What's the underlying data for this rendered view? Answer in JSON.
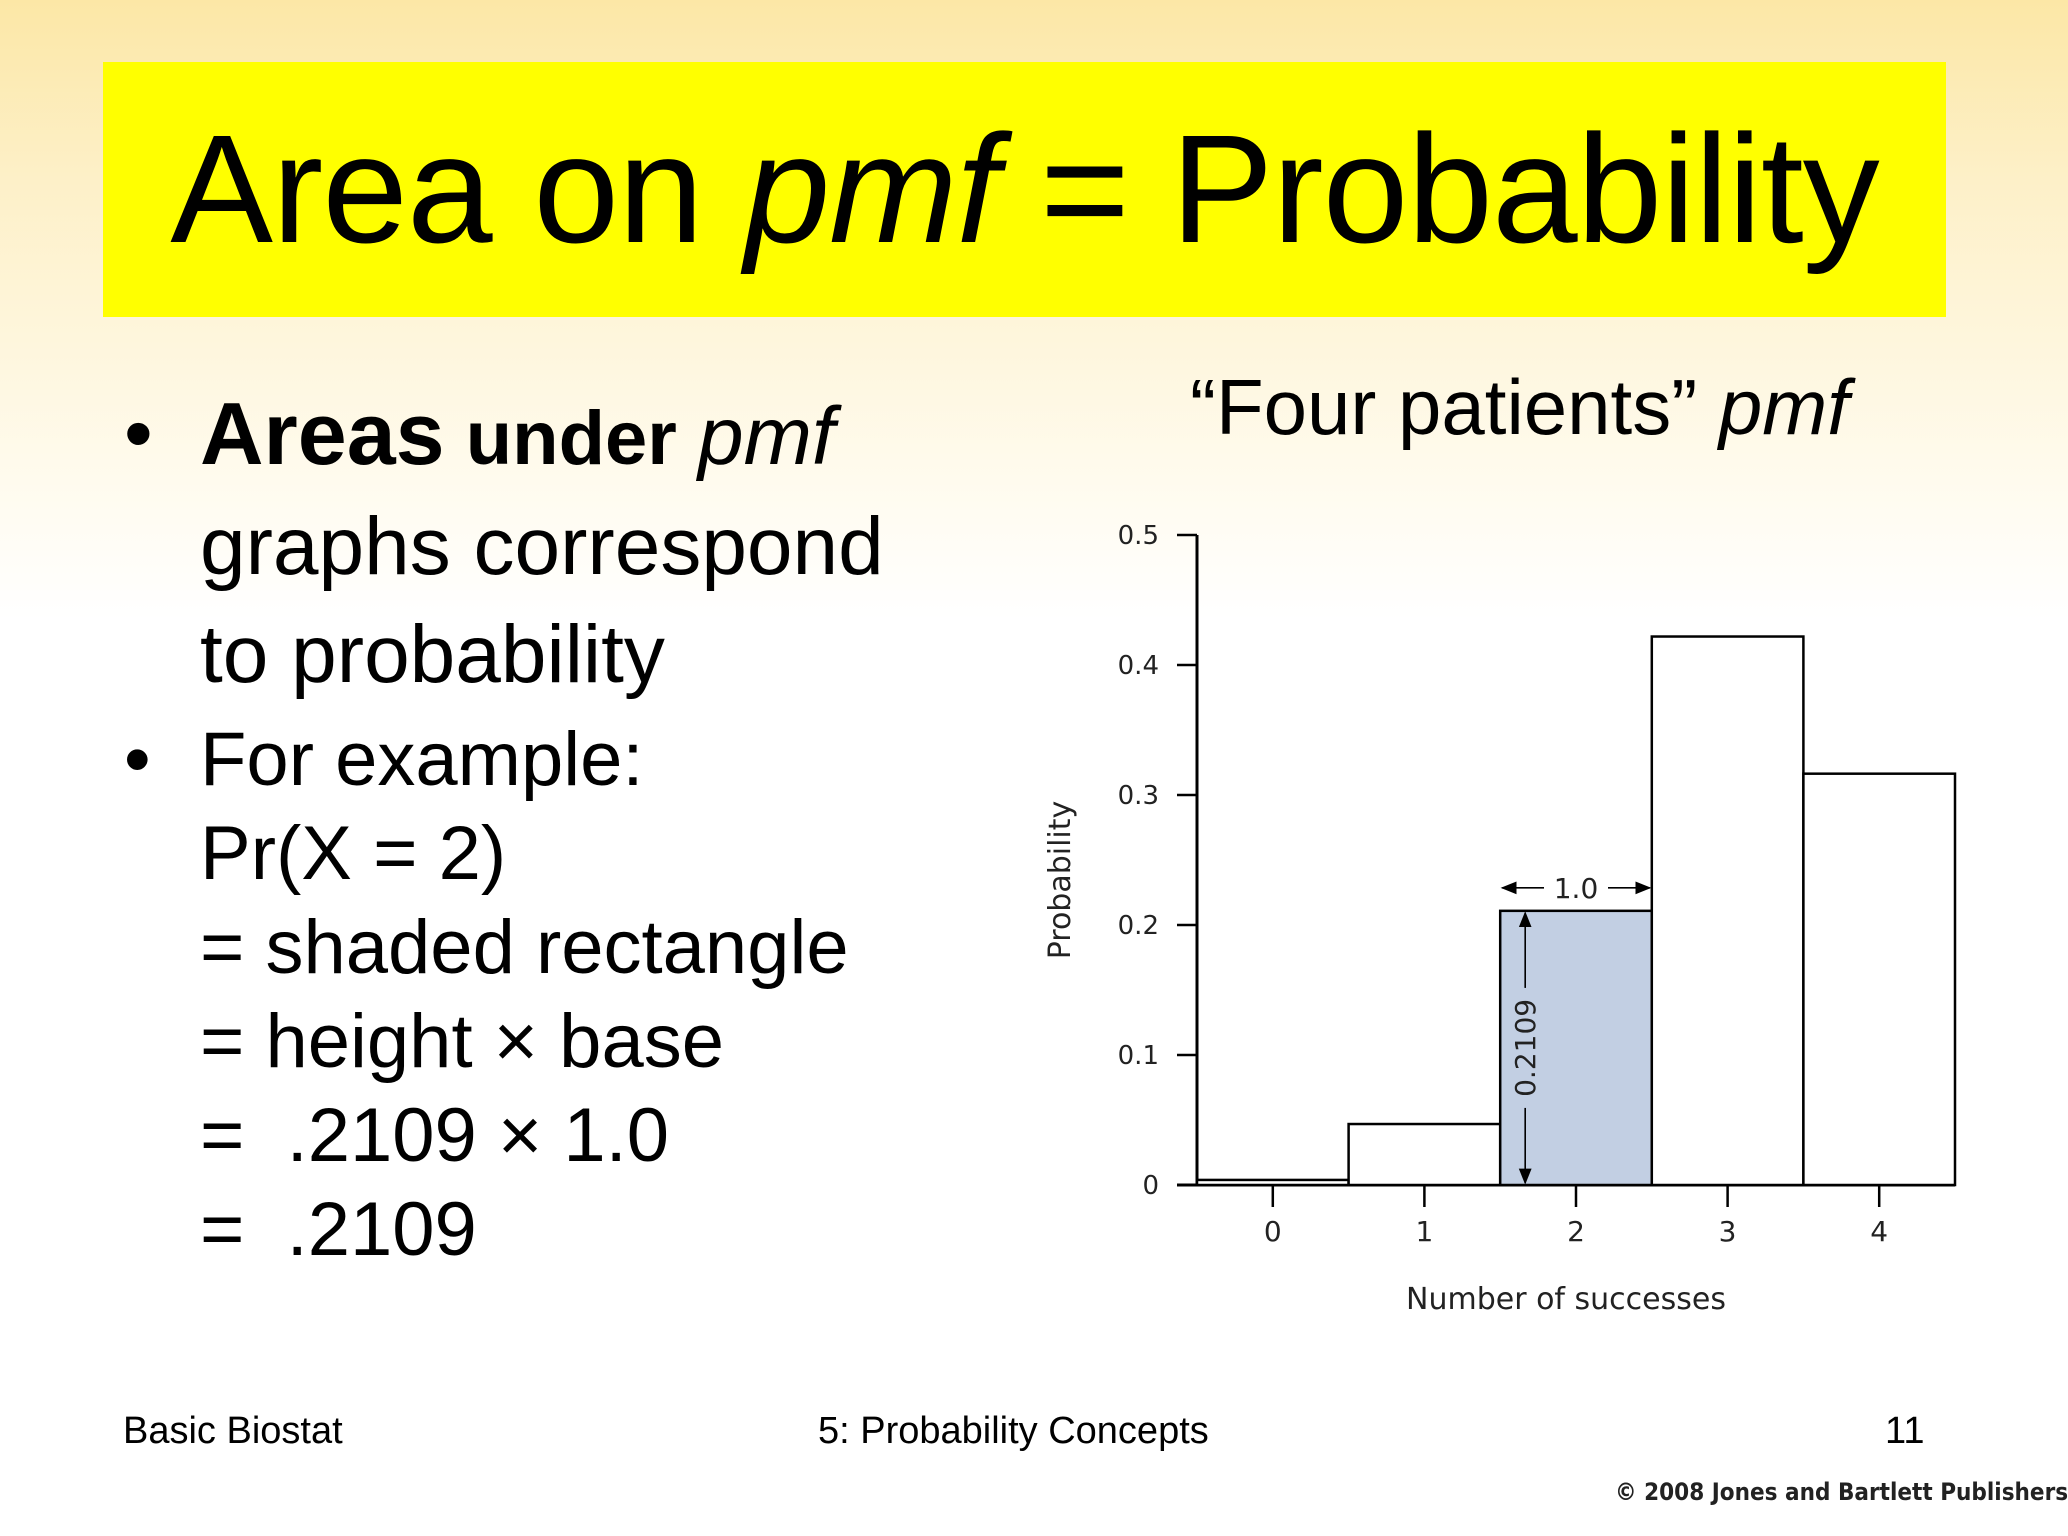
{
  "slide": {
    "title_part1": "Area on ",
    "title_italic": "pmf",
    "title_part2": " = Probability",
    "bullet_symbol": "•",
    "bullet1": {
      "bold1": "Areas",
      "bold2": " under ",
      "italic": "pmf",
      "rest_line1": "graphs correspond",
      "rest_line2": "to probability"
    },
    "bullet2_lines": [
      "For example:",
      "Pr(X = 2)",
      "= shaded rectangle",
      "= height × base",
      "=  .2109 × 1.0",
      "=  .2109"
    ],
    "chart_title_plain": "“Four patients” ",
    "chart_title_italic": "pmf"
  },
  "footer": {
    "left": "Basic Biostat",
    "center": "5: Probability Concepts",
    "page": "11",
    "copyright": "© 2008 Jones and Bartlett Publishers"
  },
  "colors": {
    "title_bg": "#ffff00",
    "highlight_bar": "#c2cfe3"
  },
  "chart_data": {
    "type": "bar",
    "title": "“Four patients” pmf",
    "xlabel": "Number of successes",
    "ylabel": "Probability",
    "categories": [
      "0",
      "1",
      "2",
      "3",
      "4"
    ],
    "values": [
      0.0039,
      0.0469,
      0.2109,
      0.4219,
      0.3164
    ],
    "highlighted_category": "2",
    "ylim": [
      0,
      0.5
    ],
    "yticks": [
      "0",
      "0.1",
      "0.2",
      "0.3",
      "0.4",
      "0.5"
    ],
    "annotations": {
      "width_label": "1.0",
      "height_label": "0.2109"
    },
    "grid": false,
    "legend": "none"
  }
}
